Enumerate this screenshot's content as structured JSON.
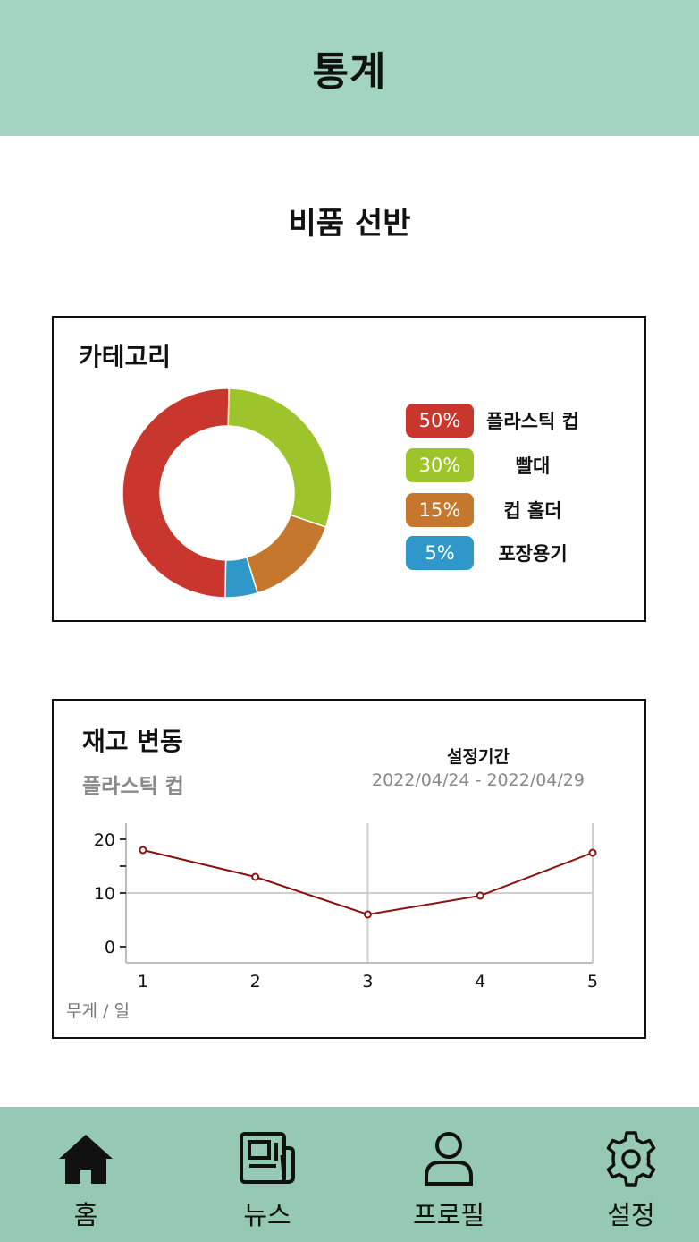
{
  "header": {
    "title": "통계"
  },
  "page": {
    "section_title": "비품 선반"
  },
  "category_card": {
    "title": "카테고리",
    "legend": [
      {
        "percent": "50%",
        "label": "플라스틱 컵",
        "color": "#c8362e"
      },
      {
        "percent": "30%",
        "label": "빨대",
        "color": "#9dc42a"
      },
      {
        "percent": "15%",
        "label": "컵 홀더",
        "color": "#c6772e"
      },
      {
        "percent": "5%",
        "label": "포장용기",
        "color": "#2f97c9"
      }
    ]
  },
  "stock_card": {
    "title": "재고 변동",
    "subtitle": "플라스틱 컵",
    "period_label": "설정기간",
    "period_range": "2022/04/24 - 2022/04/29",
    "axis_unit": "무게 / 일"
  },
  "chart_data": [
    {
      "type": "pie",
      "categories": [
        "플라스틱 컵",
        "빨대",
        "컵 홀더",
        "포장용기"
      ],
      "values": [
        50,
        30,
        15,
        5
      ],
      "colors": [
        "#c8362e",
        "#9dc42a",
        "#c6772e",
        "#2f97c9"
      ],
      "donut": true,
      "title": "카테고리"
    },
    {
      "type": "line",
      "title": "재고 변동",
      "x": [
        1,
        2,
        3,
        4,
        5
      ],
      "series": [
        {
          "values": [
            18,
            13,
            6,
            9.5,
            17.5
          ],
          "color": "#8b1010"
        }
      ],
      "xticks": [
        "1",
        "2",
        "3",
        "4",
        "5"
      ],
      "yticks": [
        "0",
        "10",
        "20"
      ],
      "xlim": [
        0.85,
        5
      ],
      "ylim": [
        -3,
        23
      ],
      "grid": true
    }
  ],
  "bottom_nav": {
    "items": [
      {
        "label": "홈",
        "icon": "home-icon"
      },
      {
        "label": "뉴스",
        "icon": "news-icon"
      },
      {
        "label": "프로필",
        "icon": "profile-icon"
      },
      {
        "label": "설정",
        "icon": "gear-icon"
      }
    ]
  }
}
